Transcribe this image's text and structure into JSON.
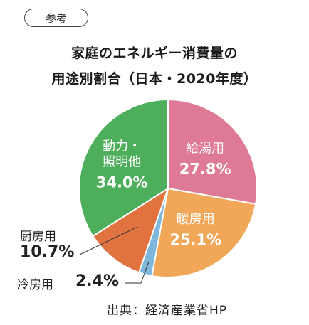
{
  "badge": "参考",
  "title_line1": "家庭のエネルギー消費量の",
  "title_line2": "用途別割合（日本・2020年度）",
  "source": "出典：経済産業省HP",
  "chart_data": {
    "type": "pie",
    "title": "家庭のエネルギー消費量の用途別割合（日本・2020年度）",
    "start": "12 o'clock",
    "direction": "clockwise",
    "slices": [
      {
        "name": "給湯用",
        "name_lines": [
          "給湯用"
        ],
        "value": 27.8,
        "value_label": "27.8%",
        "color": "#de7a95"
      },
      {
        "name": "暖房用",
        "name_lines": [
          "暖房用"
        ],
        "value": 25.1,
        "value_label": "25.1%",
        "color": "#f0a858"
      },
      {
        "name": "冷房用",
        "name_lines": [
          "冷房用"
        ],
        "value": 2.4,
        "value_label": "2.4%",
        "color": "#7fb6dc"
      },
      {
        "name": "厨房用",
        "name_lines": [
          "厨房用"
        ],
        "value": 10.7,
        "value_label": "10.7%",
        "color": "#e0733f"
      },
      {
        "name": "動力・照明他",
        "name_lines": [
          "動力・",
          "照明他"
        ],
        "value": 34.0,
        "value_label": "34.0%",
        "color": "#4dae5b"
      }
    ]
  }
}
